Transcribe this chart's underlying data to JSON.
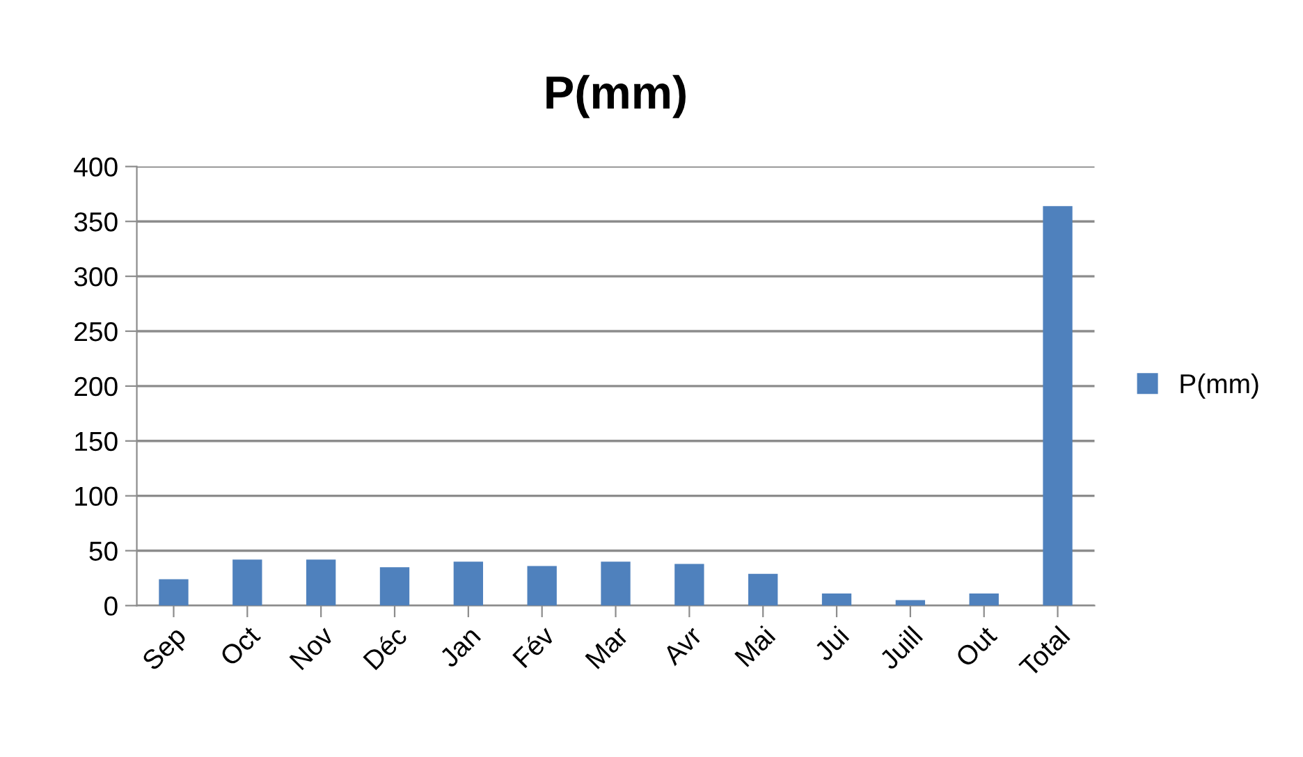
{
  "chart_data": {
    "type": "bar",
    "title": "P(mm)",
    "categories": [
      "Sep",
      "Oct",
      "Nov",
      "Déc",
      "Jan",
      "Fév",
      "Mar",
      "Avr",
      "Mai",
      "Jui",
      "Juill",
      "Out",
      "Total"
    ],
    "series": [
      {
        "name": "P(mm)",
        "color": "#4f81bd",
        "values": [
          24,
          42,
          42,
          35,
          40,
          36,
          40,
          38,
          29,
          11,
          5,
          11,
          364
        ]
      }
    ],
    "ylim": [
      0,
      400
    ],
    "yticks": [
      0,
      50,
      100,
      150,
      200,
      250,
      300,
      350,
      400
    ],
    "grid": "y",
    "legend": "right"
  }
}
